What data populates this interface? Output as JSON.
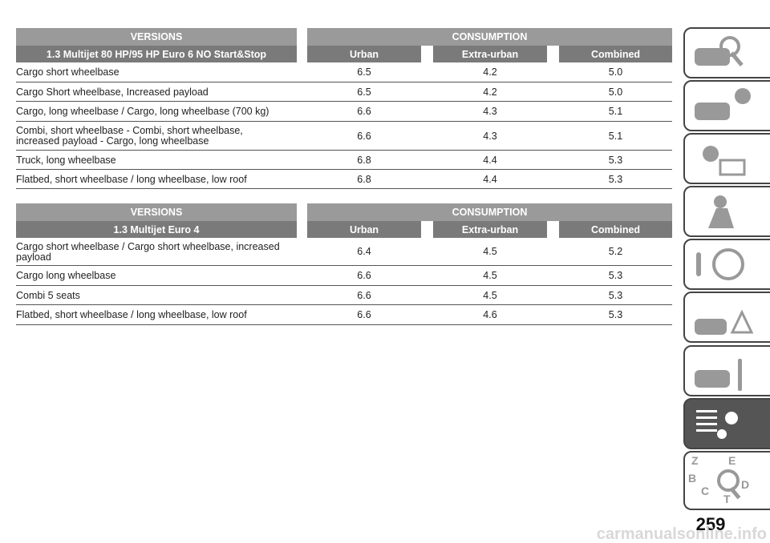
{
  "tables": [
    {
      "header": {
        "versions": "VERSIONS",
        "consumption": "CONSUMPTION"
      },
      "subheader": [
        "1.3 Multijet 80 HP/95 HP Euro 6 NO Start&Stop",
        "Urban",
        "Extra-urban",
        "Combined"
      ],
      "rows": [
        [
          "Cargo short wheelbase",
          "6.5",
          "4.2",
          "5.0"
        ],
        [
          "Cargo Short wheelbase, Increased payload",
          "6.5",
          "4.2",
          "5.0"
        ],
        [
          "Cargo, long wheelbase / Cargo, long wheelbase (700 kg)",
          "6.6",
          "4.3",
          "5.1"
        ],
        [
          "Combi, short wheelbase - Combi, short wheelbase, increased payload - Cargo, long wheelbase",
          "6.6",
          "4.3",
          "5.1"
        ],
        [
          "Truck, long wheelbase",
          "6.8",
          "4.4",
          "5.3"
        ],
        [
          "Flatbed, short wheelbase / long wheelbase, low roof",
          "6.8",
          "4.4",
          "5.3"
        ]
      ]
    },
    {
      "header": {
        "versions": "VERSIONS",
        "consumption": "CONSUMPTION"
      },
      "subheader": [
        "1.3 Multijet Euro 4",
        "Urban",
        "Extra-urban",
        "Combined"
      ],
      "rows": [
        [
          "Cargo short wheelbase / Cargo short wheelbase, increased payload",
          "6.4",
          "4.5",
          "5.2"
        ],
        [
          "Cargo long wheelbase",
          "6.6",
          "4.5",
          "5.3"
        ],
        [
          "Combi 5 seats",
          "6.6",
          "4.5",
          "5.3"
        ],
        [
          "Flatbed, short wheelbase / long wheelbase, low roof",
          "6.6",
          "4.6",
          "5.3"
        ]
      ]
    }
  ],
  "page_number": "259",
  "watermark": "carmanualsonline.info"
}
